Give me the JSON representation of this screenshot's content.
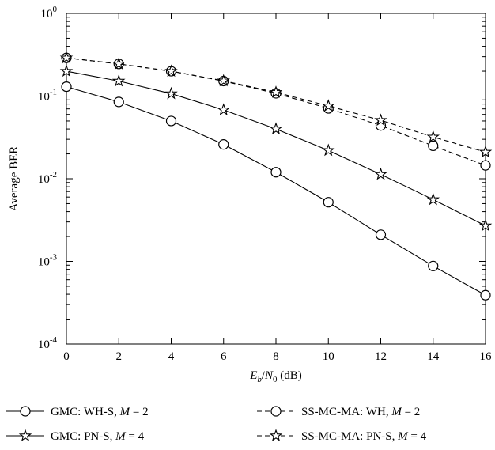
{
  "chart_data": {
    "type": "line",
    "xlabel": "E_b/N_0 (dB)",
    "ylabel": "Average BER",
    "y_scale": "log",
    "xlim": [
      0,
      16
    ],
    "ylim": [
      0.0001,
      1
    ],
    "x_ticks": [
      "0",
      "2",
      "4",
      "6",
      "8",
      "10",
      "12",
      "14",
      "16"
    ],
    "y_ticks": [
      {
        "base": "10",
        "exp": "0"
      },
      {
        "base": "10",
        "exp": "-1"
      },
      {
        "base": "10",
        "exp": "-2"
      },
      {
        "base": "10",
        "exp": "-3"
      },
      {
        "base": "10",
        "exp": "-4"
      }
    ],
    "grid": false,
    "legend_position": "bottom",
    "x": [
      0,
      2,
      4,
      6,
      8,
      10,
      12,
      14,
      16
    ],
    "series": [
      {
        "name": "GMC: WH-S, M = 2",
        "marker": "circle",
        "style": "solid",
        "values": [
          0.13,
          0.085,
          0.05,
          0.026,
          0.012,
          0.0052,
          0.0021,
          0.00088,
          0.00039
        ]
      },
      {
        "name": "GMC: PN-S, M = 4",
        "marker": "star",
        "style": "solid",
        "values": [
          0.2,
          0.152,
          0.107,
          0.068,
          0.04,
          0.022,
          0.0113,
          0.0056,
          0.0027
        ]
      },
      {
        "name": "SS-MC-MA: WH, M = 2",
        "marker": "circle",
        "style": "dashed",
        "values": [
          0.29,
          0.245,
          0.2,
          0.152,
          0.108,
          0.071,
          0.044,
          0.025,
          0.0145
        ]
      },
      {
        "name": "SS-MC-MA: PN-S, M = 4",
        "marker": "star",
        "style": "dashed",
        "values": [
          0.29,
          0.245,
          0.2,
          0.153,
          0.111,
          0.076,
          0.051,
          0.032,
          0.021
        ]
      }
    ]
  }
}
